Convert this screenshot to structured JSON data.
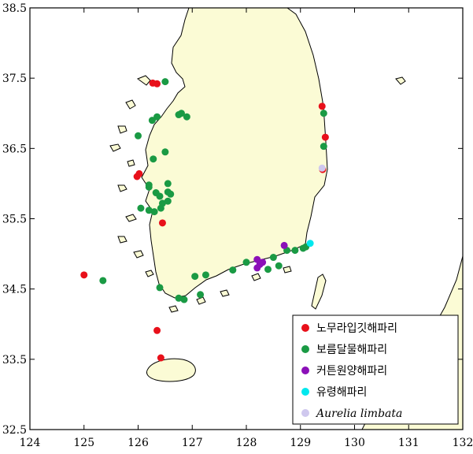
{
  "chart_data": {
    "type": "scatter",
    "title": "",
    "xlabel": "",
    "ylabel": "",
    "xlim": [
      124,
      132
    ],
    "ylim": [
      32.5,
      38.5
    ],
    "x_ticks": [
      124,
      125,
      126,
      127,
      128,
      129,
      130,
      131,
      132
    ],
    "y_ticks": [
      32.5,
      33.5,
      34.5,
      35.5,
      36.5,
      37.5,
      38.5
    ],
    "x_tick_labels": [
      "124",
      "125",
      "126",
      "127",
      "128",
      "129",
      "130",
      "131",
      "132"
    ],
    "y_tick_labels": [
      "32.5",
      "33.5",
      "34.5",
      "35.5",
      "36.5",
      "37.5",
      "38.5"
    ],
    "grid": false,
    "legend_position": "bottom-right",
    "colors": {
      "land": "#fbfbd5",
      "coast": "#000000",
      "sea": "#ffffff"
    },
    "series": [
      {
        "name": "노무라입깃해파리",
        "color": "#e8101a",
        "points": [
          [
            126.27,
            37.43
          ],
          [
            126.35,
            37.42
          ],
          [
            129.4,
            37.1
          ],
          [
            129.46,
            36.66
          ],
          [
            129.41,
            36.2
          ],
          [
            125.98,
            36.1
          ],
          [
            126.02,
            36.14
          ],
          [
            126.45,
            35.44
          ],
          [
            125.0,
            34.7
          ],
          [
            126.35,
            33.91
          ],
          [
            126.42,
            33.52
          ]
        ]
      },
      {
        "name": "보름달물해파리",
        "color": "#1a9a44",
        "points": [
          [
            126.5,
            37.45
          ],
          [
            126.26,
            36.9
          ],
          [
            126.35,
            36.95
          ],
          [
            126.8,
            37.0
          ],
          [
            126.9,
            36.95
          ],
          [
            126.75,
            36.98
          ],
          [
            126.0,
            36.68
          ],
          [
            126.28,
            36.35
          ],
          [
            126.5,
            36.45
          ],
          [
            129.43,
            37.0
          ],
          [
            129.43,
            36.53
          ],
          [
            126.2,
            35.95
          ],
          [
            126.33,
            35.87
          ],
          [
            126.55,
            36.0
          ],
          [
            126.2,
            35.98
          ],
          [
            126.4,
            35.82
          ],
          [
            126.55,
            35.88
          ],
          [
            126.6,
            35.85
          ],
          [
            126.45,
            35.72
          ],
          [
            126.55,
            35.75
          ],
          [
            126.42,
            35.65
          ],
          [
            126.3,
            35.6
          ],
          [
            126.2,
            35.62
          ],
          [
            126.05,
            35.65
          ],
          [
            125.35,
            34.62
          ],
          [
            126.4,
            34.52
          ],
          [
            126.75,
            34.37
          ],
          [
            126.85,
            34.35
          ],
          [
            127.05,
            34.68
          ],
          [
            127.15,
            34.42
          ],
          [
            127.25,
            34.7
          ],
          [
            127.75,
            34.77
          ],
          [
            128.0,
            34.88
          ],
          [
            128.4,
            34.78
          ],
          [
            128.5,
            34.95
          ],
          [
            128.6,
            34.83
          ],
          [
            128.75,
            35.05
          ],
          [
            128.9,
            35.05
          ],
          [
            129.05,
            35.08
          ],
          [
            129.1,
            35.1
          ]
        ]
      },
      {
        "name": "커튼원양해파리",
        "color": "#8b10b8",
        "points": [
          [
            128.2,
            34.92
          ],
          [
            128.25,
            34.85
          ],
          [
            128.3,
            34.88
          ],
          [
            128.2,
            34.8
          ],
          [
            128.7,
            35.12
          ]
        ]
      },
      {
        "name": "유령해파리",
        "color": "#00e8ee",
        "points": [
          [
            129.18,
            35.15
          ]
        ]
      },
      {
        "name": "Aurelia limbata",
        "color": "#cfc8ee",
        "points": [
          [
            129.4,
            36.22
          ]
        ]
      }
    ]
  }
}
